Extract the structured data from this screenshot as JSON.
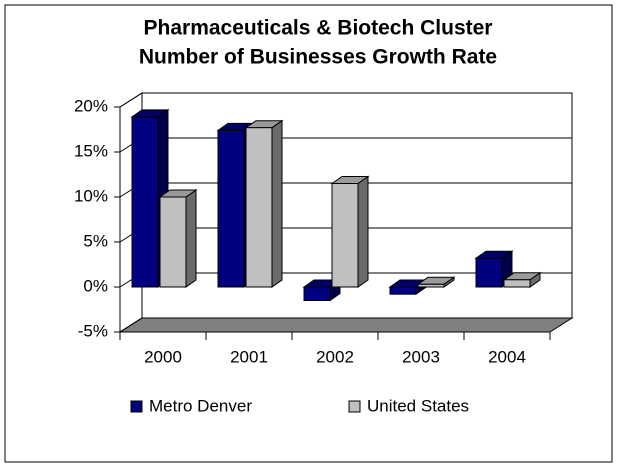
{
  "chart_data": {
    "type": "bar3d",
    "title": "Pharmaceuticals & Biotech Cluster",
    "subtitle": "Number of Businesses Growth Rate",
    "categories": [
      "2000",
      "2001",
      "2002",
      "2003",
      "2004"
    ],
    "series": [
      {
        "name": "Metro Denver",
        "color": "#000080",
        "values": [
          18.9,
          17.4,
          -1.5,
          -0.8,
          3.2
        ]
      },
      {
        "name": "United States",
        "color": "#c0c0c0",
        "values": [
          10,
          17.7,
          11.5,
          0.3,
          0.8
        ]
      }
    ],
    "ylim": [
      -5,
      20
    ],
    "yticks": [
      {
        "value": -5,
        "label": "-5%"
      },
      {
        "value": 0,
        "label": "0%"
      },
      {
        "value": 5,
        "label": "5%"
      },
      {
        "value": 10,
        "label": "10%"
      },
      {
        "value": 15,
        "label": "15%"
      },
      {
        "value": 20,
        "label": "20%"
      }
    ],
    "grid": true,
    "legend": "bottom"
  }
}
